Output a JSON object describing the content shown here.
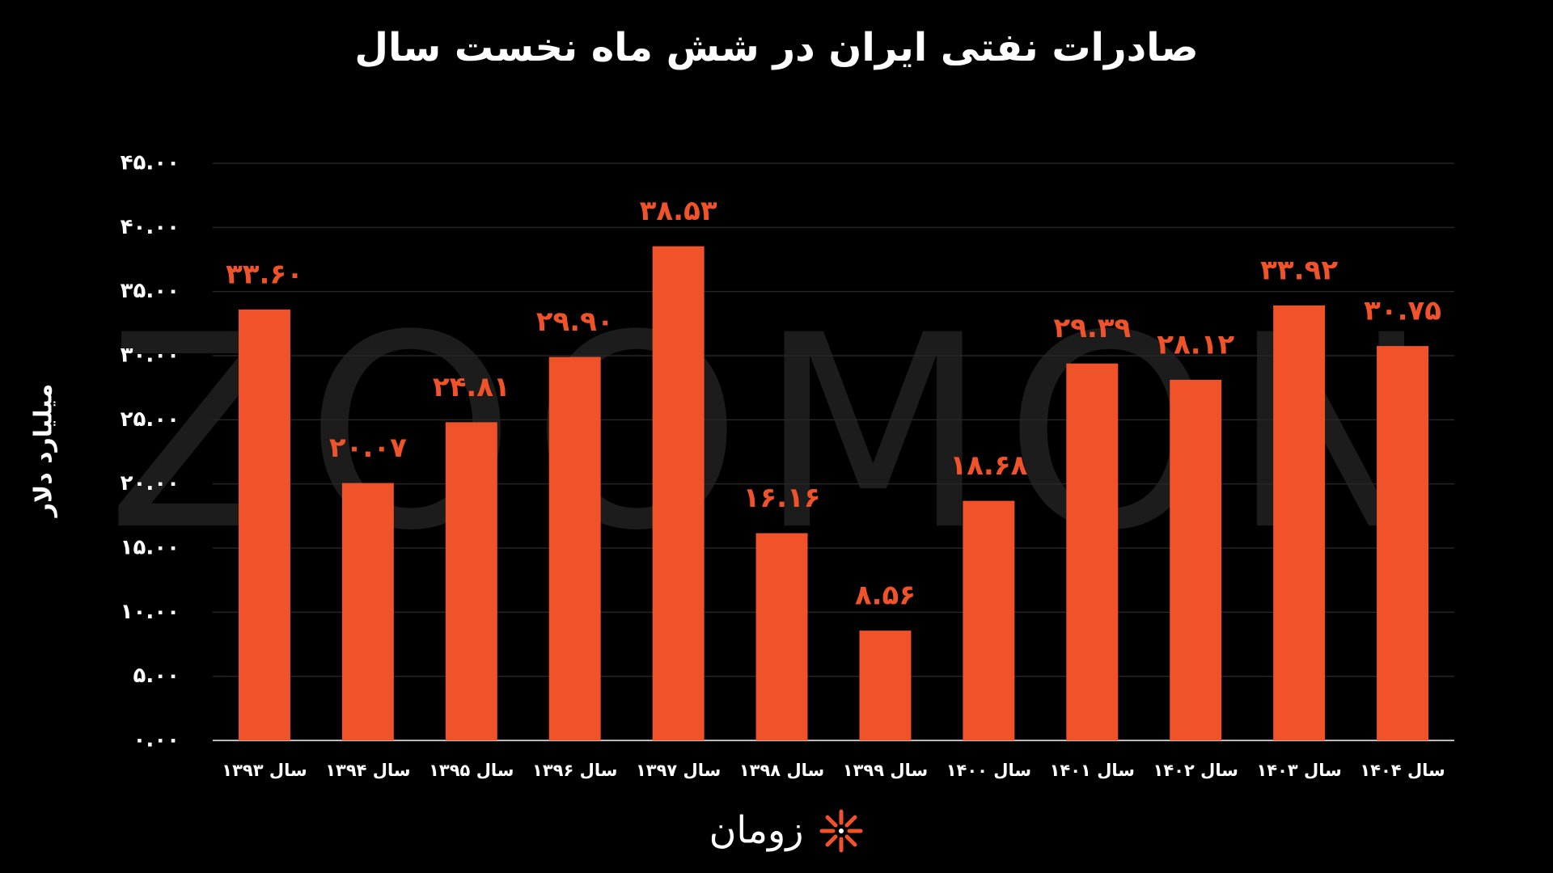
{
  "chart_data": {
    "type": "bar",
    "title": "صادرات نفتی ایران در شش ماه نخست سال",
    "y_label": "میلیارد دلار",
    "watermark": "ZOOMON",
    "logo": "زومان",
    "categories": [
      "سال ۱۳۹۳",
      "سال ۱۳۹۴",
      "سال ۱۳۹۵",
      "سال ۱۳۹۶",
      "سال ۱۳۹۷",
      "سال ۱۳۹۸",
      "سال ۱۳۹۹",
      "سال ۱۴۰۰",
      "سال ۱۴۰۱",
      "سال ۱۴۰۲",
      "سال ۱۴۰۳",
      "سال ۱۴۰۴"
    ],
    "values": [
      33.6,
      20.07,
      24.81,
      29.9,
      38.53,
      16.16,
      8.56,
      18.68,
      29.39,
      28.12,
      33.92,
      30.75
    ],
    "value_labels": [
      "۳۳.۶۰",
      "۲۰.۰۷",
      "۲۴.۸۱",
      "۲۹.۹۰",
      "۳۸.۵۳",
      "۱۶.۱۶",
      "۸.۵۶",
      "۱۸.۶۸",
      "۲۹.۳۹",
      "۲۸.۱۲",
      "۳۳.۹۲",
      "۳۰.۷۵"
    ],
    "color": "#f0522a",
    "ylim": [
      0,
      45
    ],
    "yticks": [
      {
        "value": 0,
        "label": "۰.۰۰"
      },
      {
        "value": 5,
        "label": "۵.۰۰"
      },
      {
        "value": 10,
        "label": "۱۰.۰۰"
      },
      {
        "value": 15,
        "label": "۱۵.۰۰"
      },
      {
        "value": 20,
        "label": "۲۰.۰۰"
      },
      {
        "value": 25,
        "label": "۲۵.۰۰"
      },
      {
        "value": 30,
        "label": "۳۰.۰۰"
      },
      {
        "value": 35,
        "label": "۳۵.۰۰"
      },
      {
        "value": 40,
        "label": "۴۰.۰۰"
      },
      {
        "value": 45,
        "label": "۴۵.۰۰"
      }
    ],
    "grid": true
  }
}
